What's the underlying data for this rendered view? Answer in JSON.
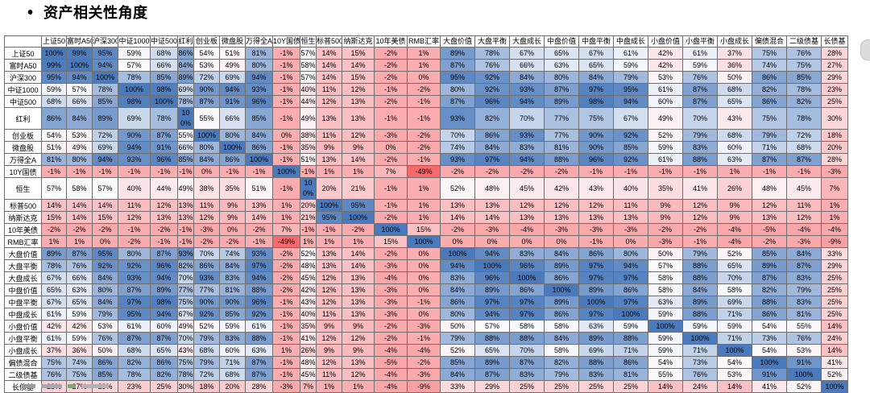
{
  "page": {
    "bullet": "•",
    "title": "资产相关性角度"
  },
  "chart_data": {
    "type": "heatmap",
    "title": "资产相关性角度",
    "values_unit": "%",
    "legend": "none",
    "color_scale": {
      "min_value": -49,
      "mid_value": 57,
      "max_value": 100,
      "min_color": "#F8696B",
      "mid_color": "#FCFCFF",
      "max_color": "#4A7ABC"
    },
    "row_labels": [
      "上证50",
      "富时A50",
      "沪深300",
      "中证1000",
      "中证500",
      "红利",
      "创业板",
      "微盘股",
      "万得全A",
      "10Y国债",
      "恒生",
      "标普500",
      "纳斯达克",
      "10年美债",
      "RMB汇率",
      "大盘价值",
      "大盘平衡",
      "大盘成长",
      "中盘价值",
      "中盘平衡",
      "中盘成长",
      "小盘价值",
      "小盘平衡",
      "小盘成长",
      "偏债混合",
      "二级债基",
      "长债基"
    ],
    "col_labels": [
      "上证50",
      "富时A50",
      "沪深300",
      "中证1000",
      "中证500",
      "红利",
      "创业板",
      "微盘股",
      "万得全A",
      "10Y国债",
      "恒生",
      "标普500",
      "纳斯达克",
      "10年美债",
      "RMB汇率",
      "大盘价值",
      "大盘平衡",
      "大盘成长",
      "中盘价值",
      "中盘平衡",
      "中盘成长",
      "小盘价值",
      "小盘平衡",
      "小盘成长",
      "偏债混合",
      "二级债基",
      "长债基"
    ],
    "matrix": [
      [
        100,
        99,
        95,
        59,
        68,
        86,
        54,
        51,
        81,
        -1,
        57,
        14,
        15,
        -2,
        1,
        89,
        78,
        67,
        65,
        67,
        61,
        42,
        61,
        37,
        75,
        76,
        28
      ],
      [
        99,
        100,
        94,
        57,
        66,
        84,
        53,
        49,
        80,
        -1,
        58,
        14,
        14,
        -2,
        1,
        87,
        76,
        66,
        63,
        65,
        59,
        42,
        59,
        36,
        74,
        75,
        27
      ],
      [
        95,
        94,
        100,
        78,
        85,
        89,
        72,
        69,
        94,
        -1,
        57,
        14,
        15,
        -2,
        0,
        95,
        92,
        84,
        80,
        84,
        79,
        53,
        76,
        50,
        86,
        85,
        29
      ],
      [
        59,
        57,
        78,
        100,
        98,
        69,
        90,
        94,
        93,
        -1,
        40,
        11,
        12,
        -1,
        -2,
        80,
        92,
        93,
        87,
        97,
        95,
        61,
        87,
        68,
        82,
        78,
        23
      ],
      [
        68,
        66,
        85,
        98,
        100,
        78,
        87,
        91,
        96,
        -1,
        44,
        12,
        13,
        -2,
        -1,
        87,
        96,
        94,
        89,
        98,
        94,
        60,
        87,
        65,
        86,
        82,
        25
      ],
      [
        86,
        84,
        89,
        69,
        78,
        100,
        55,
        66,
        85,
        -1,
        49,
        13,
        13,
        -1,
        -1,
        93,
        82,
        70,
        77,
        75,
        67,
        49,
        70,
        43,
        75,
        78,
        30
      ],
      [
        54,
        53,
        72,
        90,
        87,
        55,
        100,
        80,
        84,
        0,
        38,
        11,
        12,
        -3,
        -2,
        70,
        86,
        93,
        77,
        90,
        92,
        52,
        79,
        68,
        79,
        72,
        18
      ],
      [
        51,
        49,
        69,
        94,
        91,
        66,
        80,
        100,
        86,
        -1,
        35,
        9,
        9,
        0,
        -2,
        74,
        84,
        83,
        81,
        90,
        85,
        59,
        83,
        60,
        71,
        68,
        20
      ],
      [
        81,
        80,
        94,
        93,
        96,
        85,
        84,
        86,
        100,
        -1,
        51,
        13,
        14,
        -2,
        -1,
        93,
        97,
        94,
        88,
        96,
        92,
        61,
        88,
        63,
        87,
        87,
        28
      ],
      [
        -1,
        -1,
        -1,
        -1,
        -1,
        -1,
        0,
        -1,
        -1,
        100,
        -1,
        1,
        1,
        7,
        -49,
        -2,
        -2,
        -2,
        -2,
        -1,
        -1,
        -1,
        -1,
        1,
        -1,
        -1,
        -3
      ],
      [
        57,
        58,
        57,
        40,
        44,
        49,
        38,
        35,
        51,
        -1,
        100,
        20,
        21,
        -1,
        1,
        52,
        48,
        45,
        42,
        43,
        40,
        35,
        41,
        26,
        48,
        45,
        7
      ],
      [
        14,
        14,
        14,
        11,
        12,
        13,
        11,
        9,
        13,
        1,
        20,
        100,
        95,
        -1,
        1,
        13,
        13,
        12,
        12,
        12,
        11,
        9,
        12,
        9,
        12,
        11,
        1
      ],
      [
        15,
        14,
        15,
        12,
        13,
        13,
        12,
        9,
        14,
        1,
        21,
        95,
        100,
        -2,
        1,
        14,
        14,
        13,
        13,
        13,
        13,
        9,
        12,
        9,
        13,
        12,
        1
      ],
      [
        -2,
        -2,
        -2,
        -1,
        -2,
        -1,
        -3,
        0,
        -2,
        7,
        -1,
        -1,
        -2,
        100,
        15,
        -2,
        -3,
        -4,
        -3,
        -3,
        -3,
        -2,
        -2,
        -4,
        -5,
        -4,
        -4
      ],
      [
        1,
        1,
        0,
        -2,
        -1,
        -1,
        -2,
        -2,
        -1,
        -49,
        1,
        1,
        1,
        15,
        100,
        0,
        0,
        0,
        0,
        -1,
        0,
        -3,
        -1,
        -4,
        -2,
        -3,
        -9
      ],
      [
        89,
        87,
        95,
        80,
        87,
        93,
        70,
        74,
        93,
        -2,
        52,
        13,
        14,
        -2,
        0,
        100,
        94,
        83,
        84,
        86,
        80,
        50,
        79,
        52,
        85,
        84,
        33
      ],
      [
        78,
        76,
        92,
        92,
        96,
        82,
        86,
        84,
        97,
        -2,
        48,
        13,
        14,
        -3,
        0,
        94,
        100,
        96,
        89,
        97,
        94,
        57,
        88,
        65,
        89,
        87,
        29
      ],
      [
        67,
        66,
        84,
        93,
        94,
        70,
        93,
        83,
        94,
        -2,
        45,
        12,
        13,
        -4,
        0,
        83,
        96,
        100,
        86,
        97,
        97,
        58,
        88,
        70,
        87,
        83,
        25
      ],
      [
        65,
        63,
        80,
        87,
        89,
        77,
        77,
        81,
        88,
        -2,
        42,
        12,
        13,
        -3,
        0,
        84,
        89,
        86,
        100,
        89,
        86,
        58,
        84,
        58,
        82,
        79,
        25
      ],
      [
        67,
        65,
        84,
        97,
        98,
        75,
        90,
        90,
        96,
        -1,
        43,
        12,
        13,
        -3,
        -1,
        86,
        97,
        97,
        89,
        100,
        97,
        63,
        89,
        69,
        88,
        83,
        25
      ],
      [
        61,
        59,
        79,
        95,
        94,
        67,
        92,
        85,
        92,
        -1,
        40,
        11,
        13,
        -3,
        0,
        80,
        94,
        97,
        86,
        97,
        100,
        59,
        88,
        71,
        86,
        81,
        25
      ],
      [
        42,
        42,
        53,
        61,
        60,
        49,
        52,
        59,
        61,
        -1,
        35,
        9,
        9,
        -2,
        -3,
        50,
        57,
        58,
        58,
        63,
        59,
        100,
        59,
        59,
        54,
        55,
        14
      ],
      [
        61,
        59,
        76,
        87,
        87,
        70,
        79,
        83,
        88,
        -1,
        41,
        12,
        12,
        -2,
        -1,
        79,
        88,
        88,
        84,
        89,
        88,
        59,
        100,
        71,
        73,
        76,
        24
      ],
      [
        37,
        36,
        50,
        68,
        65,
        43,
        68,
        60,
        63,
        1,
        26,
        9,
        9,
        -4,
        -4,
        52,
        65,
        70,
        58,
        69,
        71,
        59,
        71,
        100,
        54,
        53,
        14
      ],
      [
        75,
        74,
        86,
        82,
        86,
        75,
        79,
        71,
        87,
        -1,
        48,
        12,
        13,
        -5,
        -2,
        85,
        89,
        87,
        82,
        88,
        86,
        54,
        73,
        54,
        100,
        91,
        41
      ],
      [
        76,
        75,
        85,
        78,
        82,
        78,
        72,
        68,
        87,
        -1,
        45,
        11,
        12,
        -4,
        -3,
        84,
        87,
        83,
        79,
        83,
        81,
        55,
        76,
        53,
        91,
        100,
        52
      ],
      [
        28,
        27,
        29,
        23,
        25,
        30,
        18,
        20,
        28,
        -3,
        7,
        1,
        1,
        -4,
        -9,
        33,
        29,
        25,
        25,
        25,
        25,
        14,
        24,
        14,
        41,
        52,
        100
      ]
    ]
  }
}
